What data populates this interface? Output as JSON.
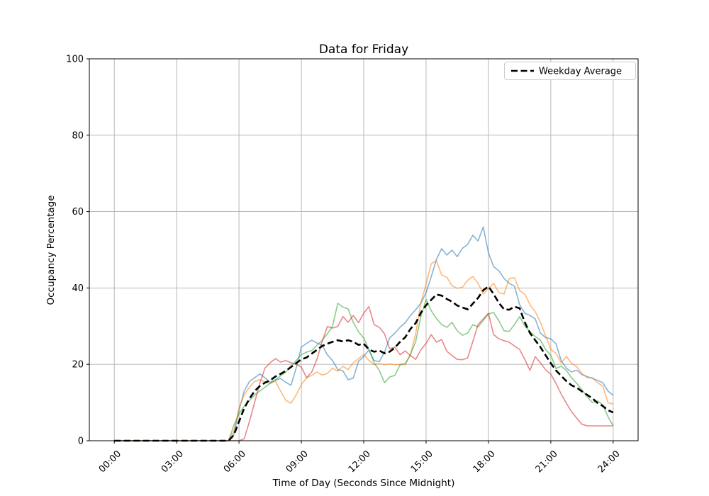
{
  "chart_data": {
    "type": "line",
    "title": "Data for Friday",
    "xlabel": "Time of Day (Seconds Since Midnight)",
    "ylabel": "Occupancy Percentage",
    "xlim_hours": [
      -1.2,
      25.2
    ],
    "ylim": [
      0,
      100
    ],
    "y_ticks": [
      0,
      20,
      40,
      60,
      80,
      100
    ],
    "x_tick_hours": [
      0,
      3,
      6,
      9,
      12,
      15,
      18,
      21,
      24
    ],
    "x_tick_labels": [
      "00:00",
      "03:00",
      "06:00",
      "09:00",
      "12:00",
      "15:00",
      "18:00",
      "21:00",
      "24:00"
    ],
    "grid": true,
    "grid_color": "#b0b0b0",
    "spine_color": "#000000",
    "legend": {
      "position": "upper right",
      "label": "Weekday Average"
    },
    "x_hours": [
      0,
      0.25,
      0.5,
      0.75,
      1,
      1.25,
      1.5,
      1.75,
      2,
      2.25,
      2.5,
      2.75,
      3,
      3.25,
      3.5,
      3.75,
      4,
      4.25,
      4.5,
      4.75,
      5,
      5.25,
      5.5,
      5.75,
      6,
      6.25,
      6.5,
      6.75,
      7,
      7.25,
      7.5,
      7.75,
      8,
      8.25,
      8.5,
      8.75,
      9,
      9.25,
      9.5,
      9.75,
      10,
      10.25,
      10.5,
      10.75,
      11,
      11.25,
      11.5,
      11.75,
      12,
      12.25,
      12.5,
      12.75,
      13,
      13.25,
      13.5,
      13.75,
      14,
      14.25,
      14.5,
      14.75,
      15,
      15.25,
      15.5,
      15.75,
      16,
      16.25,
      16.5,
      16.75,
      17,
      17.25,
      17.5,
      17.75,
      18,
      18.25,
      18.5,
      18.75,
      19,
      19.25,
      19.5,
      19.75,
      20,
      20.25,
      20.5,
      20.75,
      21,
      21.25,
      21.5,
      21.75,
      22,
      22.25,
      22.5,
      22.75,
      23,
      23.25,
      23.5,
      23.75,
      24
    ],
    "series": [
      {
        "id": "week-line-1",
        "color": "#1f77b4",
        "opacity": 0.55,
        "linewidth": 1.6,
        "values": [
          0,
          0,
          0,
          0,
          0,
          0,
          0,
          0,
          0,
          0,
          0,
          0,
          0,
          0,
          0,
          0,
          0,
          0,
          0,
          0,
          0,
          0,
          0,
          1.5,
          8,
          13,
          15.5,
          16.5,
          17.5,
          16.5,
          15.3,
          15.8,
          16.3,
          15.3,
          14.5,
          19,
          24.5,
          25.5,
          26.3,
          25.6,
          25,
          22.5,
          21,
          18.6,
          18.3,
          16,
          16.4,
          20.8,
          22,
          23.8,
          21,
          20.7,
          23.2,
          26.9,
          28.2,
          29.7,
          30.9,
          32.8,
          34.3,
          36,
          38.8,
          43,
          47.5,
          50.3,
          48.6,
          49.9,
          48.2,
          50.4,
          51.4,
          53.8,
          52.3,
          56,
          49.2,
          45.6,
          44.5,
          42.5,
          41.2,
          40.5,
          35.6,
          33.4,
          32.8,
          31.9,
          28.2,
          27,
          26.7,
          25.4,
          21,
          19,
          18,
          18.5,
          17.3,
          16.8,
          16.3,
          15.8,
          15.2,
          13,
          11.9
        ]
      },
      {
        "id": "week-line-2",
        "color": "#ff7f0e",
        "opacity": 0.55,
        "linewidth": 1.6,
        "values": [
          0,
          0,
          0,
          0,
          0,
          0,
          0,
          0,
          0,
          0,
          0,
          0,
          0,
          0,
          0,
          0,
          0,
          0,
          0,
          0,
          0,
          0,
          0,
          2.5,
          8.5,
          12,
          14,
          15.5,
          16,
          15.4,
          15,
          15.6,
          13,
          10.6,
          9.8,
          12,
          14.7,
          16.5,
          17.1,
          18,
          17.2,
          17.6,
          19,
          18.2,
          19.5,
          18.6,
          20.4,
          21.5,
          22.6,
          21,
          19.9,
          20.2,
          19.9,
          20.1,
          19.9,
          20,
          19.9,
          22.6,
          28,
          36.2,
          41,
          46.4,
          47.1,
          43.4,
          42.8,
          40.6,
          39.9,
          40.2,
          42,
          43,
          41.2,
          38.4,
          39.9,
          41.2,
          38.8,
          38.4,
          42.5,
          42.7,
          39.3,
          38.4,
          35.6,
          33.8,
          31,
          27.5,
          23.9,
          22.9,
          20.4,
          22.1,
          20.2,
          19.4,
          17.6,
          16.5,
          16.5,
          15.2,
          14.3,
          10,
          9.6
        ]
      },
      {
        "id": "week-line-3",
        "color": "#2ca02c",
        "opacity": 0.55,
        "linewidth": 1.6,
        "values": [
          0,
          0,
          0,
          0,
          0,
          0,
          0,
          0,
          0,
          0,
          0,
          0,
          0,
          0,
          0,
          0,
          0,
          0,
          0,
          0,
          0,
          0,
          0,
          4,
          7,
          9,
          10.5,
          12,
          13,
          14,
          15,
          16,
          17,
          18,
          19.5,
          21,
          22.5,
          23.2,
          23.6,
          25,
          26.3,
          28,
          30,
          36,
          35,
          34.5,
          31,
          28.5,
          26.9,
          23.9,
          20.4,
          18.4,
          15.2,
          16.7,
          17.1,
          19.9,
          20.2,
          22.6,
          26,
          32.5,
          37,
          34,
          32,
          30.4,
          29.7,
          31,
          28.8,
          27.6,
          28.2,
          30.4,
          29.8,
          31.5,
          33.2,
          33.6,
          31.4,
          28.8,
          28.6,
          30.4,
          32.5,
          30,
          28.6,
          27.3,
          26.3,
          23.9,
          22.4,
          18.9,
          19.5,
          18.4,
          16.5,
          15,
          13.3,
          11.5,
          10,
          10.4,
          9.4,
          6.3,
          3.9
        ]
      },
      {
        "id": "week-line-4",
        "color": "#d62728",
        "opacity": 0.55,
        "linewidth": 1.6,
        "values": [
          0,
          0,
          0,
          0,
          0,
          0,
          0,
          0,
          0,
          0,
          0,
          0,
          0,
          0,
          0,
          0,
          0,
          0,
          0,
          0,
          0,
          0,
          0,
          0,
          0,
          0.5,
          5,
          10,
          15,
          19,
          20.4,
          21.5,
          20.6,
          21,
          20.4,
          20,
          19.3,
          16.5,
          18,
          21.3,
          26,
          29.9,
          29.5,
          29.9,
          32.5,
          31,
          32.8,
          30.9,
          33.4,
          35.1,
          30.4,
          29.7,
          28,
          24.1,
          24.5,
          22.5,
          23.5,
          22.3,
          21.3,
          23.8,
          25.5,
          27.8,
          25.8,
          26.5,
          23.4,
          22.3,
          21.3,
          21.2,
          21.7,
          26,
          30.4,
          31.9,
          33.4,
          27.8,
          26.7,
          26.2,
          25.8,
          24.8,
          23.9,
          21.3,
          18.4,
          22,
          20.4,
          18.6,
          17.4,
          15,
          12.2,
          9.8,
          7.6,
          5.9,
          4.3,
          3.9,
          3.9,
          3.9,
          3.9,
          3.9,
          3.9
        ]
      },
      {
        "id": "weekday-average",
        "label": "Weekday Average",
        "color": "#000000",
        "opacity": 1,
        "linewidth": 2.6,
        "dash": "9 4.5",
        "values": [
          0,
          0,
          0,
          0,
          0,
          0,
          0,
          0,
          0,
          0,
          0,
          0,
          0,
          0,
          0,
          0,
          0,
          0,
          0,
          0,
          0,
          0,
          0,
          1.5,
          5,
          8.5,
          11,
          13,
          14.3,
          15.2,
          15.8,
          16.8,
          17.5,
          18.3,
          19.3,
          20.3,
          21.3,
          21.8,
          22.8,
          23.8,
          24.8,
          25.4,
          25.9,
          26.3,
          26,
          26.3,
          25.9,
          25.1,
          25.4,
          23.9,
          23.3,
          23.6,
          22.9,
          23.3,
          24.4,
          25.9,
          27.1,
          29.3,
          30.8,
          33.5,
          35.5,
          36.9,
          38.3,
          38,
          37.1,
          36.4,
          35.4,
          34.9,
          34.4,
          35.9,
          37.4,
          39.4,
          40.4,
          38.4,
          36.1,
          34.4,
          34.3,
          35.1,
          34.7,
          31,
          28.2,
          26.3,
          24.5,
          22.4,
          20.3,
          18.4,
          17,
          15.6,
          14.5,
          13.9,
          12.9,
          12,
          11.1,
          9.9,
          9.1,
          8,
          7.4
        ]
      }
    ]
  }
}
